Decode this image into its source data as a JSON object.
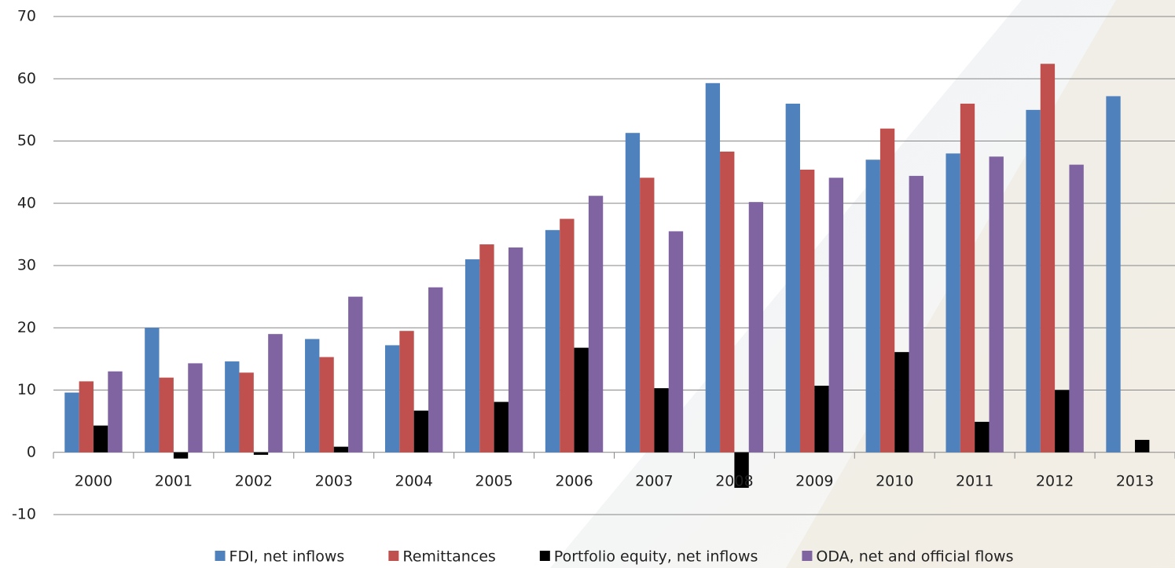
{
  "chart_data": {
    "type": "bar",
    "categories": [
      "2000",
      "2001",
      "2002",
      "2003",
      "2004",
      "2005",
      "2006",
      "2007",
      "2008",
      "2009",
      "2010",
      "2011",
      "2012",
      "2013"
    ],
    "series": [
      {
        "name": "FDI, net inflows",
        "color": "#4f81bd",
        "values": [
          9.6,
          20,
          14.6,
          18.2,
          17.2,
          31,
          35.7,
          51.3,
          59.3,
          56,
          47,
          48,
          55,
          57.2
        ]
      },
      {
        "name": "Remittances",
        "color": "#c0504d",
        "values": [
          11.4,
          12,
          12.8,
          15.3,
          19.5,
          33.4,
          37.5,
          44.1,
          48.3,
          45.4,
          52,
          56,
          62.4,
          null
        ]
      },
      {
        "name": "Portfolio equity, net inflows",
        "color": "#000000",
        "values": [
          4.3,
          -1,
          -0.4,
          0.9,
          6.7,
          8.1,
          16.8,
          10.3,
          -5.7,
          10.7,
          16.1,
          4.9,
          10,
          2
        ]
      },
      {
        "name": "ODA, net and official flows",
        "color": "#8064a2",
        "values": [
          13,
          14.3,
          19,
          25,
          26.5,
          32.9,
          41.2,
          35.5,
          40.2,
          44.1,
          44.4,
          47.5,
          46.2,
          null
        ]
      }
    ],
    "ylim": [
      -10,
      70
    ],
    "yticks": [
      -10,
      0,
      10,
      20,
      30,
      40,
      50,
      60,
      70
    ],
    "grid": true,
    "legend": "bottom"
  }
}
